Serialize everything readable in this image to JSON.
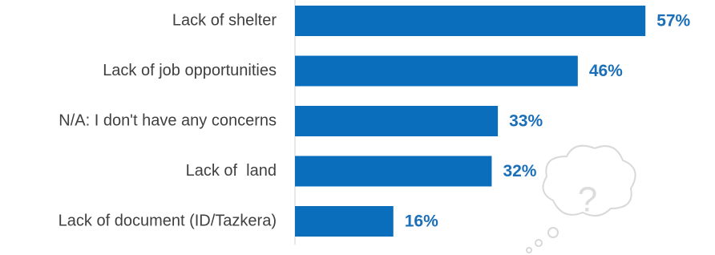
{
  "chart_data": {
    "type": "bar",
    "categories": [
      "Lack of shelter",
      "Lack of job opportunities",
      "N/A: I don't have any concerns",
      "Lack of  land",
      "Lack of document (ID/Tazkera)"
    ],
    "values": [
      57,
      46,
      33,
      32,
      16
    ],
    "value_labels": [
      "57%",
      "46%",
      "33%",
      "32%",
      "16%"
    ],
    "color": "#0b6ebd"
  }
}
